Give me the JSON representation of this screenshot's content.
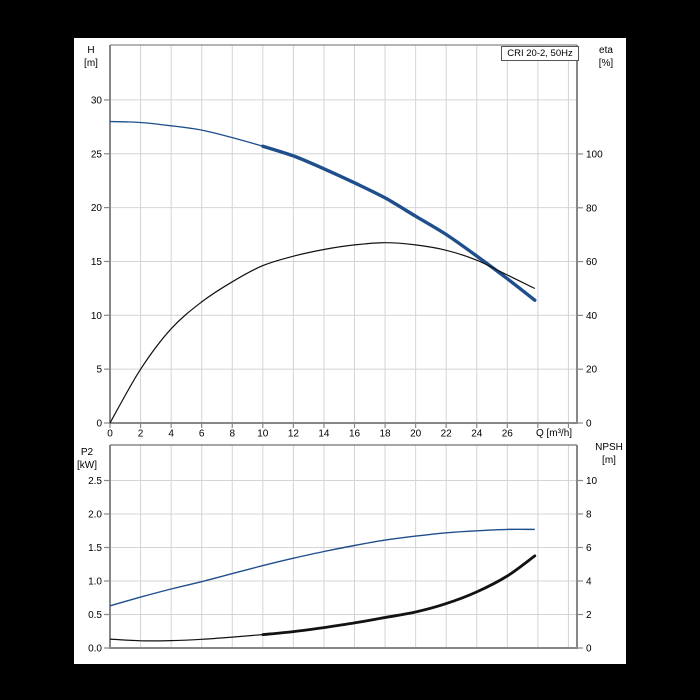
{
  "style": {
    "background": "#000000",
    "panel": "#ffffff",
    "grid": "#d4d4d4",
    "axis": "#878787",
    "text": "#000000",
    "curve_blue": "#1f4e8c",
    "curve_black": "#121212"
  },
  "chart_data": [
    {
      "type": "line",
      "title": "CRI 20-2, 50Hz",
      "x_axis": {
        "label": "Q [m³/h]",
        "max": 30.56,
        "grid_step": 2,
        "ticks": [
          0,
          2,
          4,
          6,
          8,
          10,
          12,
          14,
          16,
          18,
          20,
          22,
          24,
          26
        ],
        "tick_labels": [
          "0",
          "2",
          "4",
          "6",
          "8",
          "10",
          "12",
          "14",
          "16",
          "18",
          "20",
          "22",
          "24",
          "26"
        ]
      },
      "left_axis": {
        "name": "H",
        "unit": "[m]",
        "max": 35.1,
        "ticks": [
          0,
          5,
          10,
          15,
          20,
          25,
          30
        ],
        "tick_labels": [
          "0",
          "5",
          "10",
          "15",
          "20",
          "25",
          "30"
        ]
      },
      "right_axis": {
        "name": "eta",
        "unit": "[%]",
        "max": 140.5,
        "ticks": [
          0,
          20,
          40,
          60,
          80,
          100
        ],
        "tick_labels": [
          "0",
          "20",
          "40",
          "60",
          "80",
          "100"
        ]
      },
      "series": [
        {
          "name": "H curve",
          "axis": "left",
          "color": "#1f4e8c",
          "width": 1.3,
          "bold_from": 10,
          "bold_width": 3.4,
          "x": [
            0,
            2,
            4,
            6,
            8,
            10,
            12,
            14,
            16,
            18,
            20,
            22,
            24,
            26,
            27.8
          ],
          "y": [
            28.0,
            27.9,
            27.6,
            27.2,
            26.5,
            25.7,
            24.8,
            23.6,
            22.3,
            20.9,
            19.2,
            17.5,
            15.5,
            13.4,
            11.4
          ]
        },
        {
          "name": "eta curve",
          "axis": "right",
          "color": "#121212",
          "width": 1.2,
          "x": [
            0,
            2,
            4,
            6,
            8,
            10,
            12,
            14,
            16,
            18,
            20,
            22,
            24,
            26,
            27.8
          ],
          "y": [
            0,
            20,
            35,
            45,
            52.5,
            58.5,
            62,
            64.5,
            66.2,
            67,
            66.2,
            64.2,
            60.5,
            55,
            50
          ]
        }
      ]
    },
    {
      "type": "line",
      "x_axis": {
        "max": 30.56,
        "grid_step": 2,
        "ticks": [],
        "tick_labels": []
      },
      "left_axis": {
        "name": "P2",
        "unit": "[kW]",
        "max": 3.03,
        "ticks": [
          0,
          0.5,
          1.0,
          1.5,
          2.0,
          2.5
        ],
        "tick_labels": [
          "0.0",
          "0.5",
          "1.0",
          "1.5",
          "2.0",
          "2.5"
        ]
      },
      "right_axis": {
        "name": "NPSH",
        "unit": "[m]",
        "max": 12.12,
        "ticks": [
          0,
          2,
          4,
          6,
          8,
          10
        ],
        "tick_labels": [
          "0",
          "2",
          "4",
          "6",
          "8",
          "10"
        ]
      },
      "series": [
        {
          "name": "P2 curve",
          "axis": "left",
          "color": "#1f4e8c",
          "width": 1.4,
          "x": [
            0,
            2,
            4,
            6,
            8,
            10,
            12,
            14,
            16,
            18,
            20,
            22,
            24,
            26,
            27.8
          ],
          "y": [
            0.63,
            0.76,
            0.88,
            0.99,
            1.11,
            1.23,
            1.34,
            1.44,
            1.53,
            1.61,
            1.67,
            1.72,
            1.75,
            1.77,
            1.77
          ]
        },
        {
          "name": "NPSH curve",
          "axis": "right",
          "color": "#121212",
          "width": 1.2,
          "bold_from": 10,
          "bold_width": 2.8,
          "x": [
            0,
            2,
            4,
            6,
            8,
            10,
            12,
            14,
            16,
            18,
            20,
            22,
            24,
            26,
            27.8
          ],
          "y": [
            0.53,
            0.43,
            0.44,
            0.52,
            0.65,
            0.8,
            0.98,
            1.22,
            1.5,
            1.82,
            2.15,
            2.65,
            3.35,
            4.3,
            5.5
          ]
        }
      ]
    }
  ]
}
